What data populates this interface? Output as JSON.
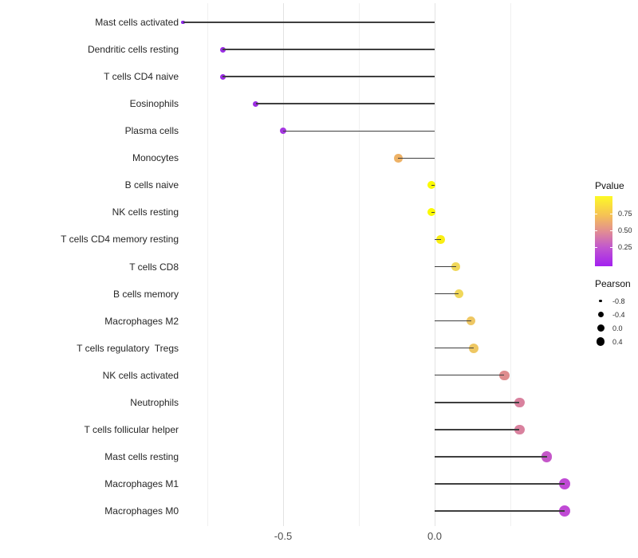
{
  "chart_data": {
    "type": "scatter",
    "subtype": "lollipop",
    "orientation": "horizontal",
    "title": "",
    "xlabel": "",
    "ylabel": "",
    "xlim": [
      -0.83,
      0.51
    ],
    "grid": true,
    "x_gridlines": [
      -0.75,
      -0.5,
      -0.25,
      0.0,
      0.25
    ],
    "x_ticks": [
      -0.5,
      0.0
    ],
    "x_tick_labels": [
      "-0.5",
      "0.0"
    ],
    "points": [
      {
        "label": "Mast cells activated",
        "pearson": -0.83,
        "color": "#8b27e5",
        "diameter": 4.5
      },
      {
        "label": "Dendritic cells resting",
        "pearson": -0.7,
        "color": "#9a2ce4",
        "diameter": 7
      },
      {
        "label": "T cells CD4 naive",
        "pearson": -0.7,
        "color": "#9a2ce4",
        "diameter": 7
      },
      {
        "label": "Eosinophils",
        "pearson": -0.59,
        "color": "#9c2ee3",
        "diameter": 7
      },
      {
        "label": "Plasma cells",
        "pearson": -0.5,
        "color": "#a537e1",
        "diameter": 8
      },
      {
        "label": "Monocytes",
        "pearson": -0.12,
        "color": "#eeb266",
        "diameter": 10.5
      },
      {
        "label": "B cells naive",
        "pearson": -0.01,
        "color": "#fbfa01",
        "diameter": 10
      },
      {
        "label": "NK cells resting",
        "pearson": -0.01,
        "color": "#fbfa01",
        "diameter": 10
      },
      {
        "label": "T cells CD4 memory resting",
        "pearson": 0.02,
        "color": "#f9ee14",
        "diameter": 10.5
      },
      {
        "label": "T cells CD8",
        "pearson": 0.07,
        "color": "#f0d75a",
        "diameter": 10.5
      },
      {
        "label": "B cells memory",
        "pearson": 0.08,
        "color": "#f0d75a",
        "diameter": 11
      },
      {
        "label": "Macrophages M2",
        "pearson": 0.12,
        "color": "#eec763",
        "diameter": 11.5
      },
      {
        "label": "T cells regulatory  Tregs",
        "pearson": 0.13,
        "color": "#eec763",
        "diameter": 12
      },
      {
        "label": "NK cells activated",
        "pearson": 0.23,
        "color": "#df8d8e",
        "diameter": 12.5
      },
      {
        "label": "Neutrophils",
        "pearson": 0.28,
        "color": "#d9819e",
        "diameter": 12.5
      },
      {
        "label": "T cells follicular helper",
        "pearson": 0.28,
        "color": "#d9819e",
        "diameter": 12.5
      },
      {
        "label": "Mast cells resting",
        "pearson": 0.37,
        "color": "#c557c9",
        "diameter": 13.5
      },
      {
        "label": "Macrophages M1",
        "pearson": 0.43,
        "color": "#c04ad5",
        "diameter": 14
      },
      {
        "label": "Macrophages M0",
        "pearson": 0.43,
        "color": "#c04ad5",
        "diameter": 14
      }
    ],
    "legends": {
      "pvalue": {
        "title": "Pvalue",
        "tick_labels": [
          "0.75",
          "0.50",
          "0.25"
        ],
        "tick_fractions_from_top": [
          0.25,
          0.485,
          0.725
        ],
        "gradient_bottom_to_top": [
          "#a320f0",
          "#c157ce",
          "#e28e92",
          "#f6c254",
          "#fdfa25"
        ],
        "gradient_stops_pct": [
          0,
          27,
          50,
          73,
          100
        ]
      },
      "pearson": {
        "title": "Pearson",
        "entries": [
          {
            "label": "-0.8",
            "diameter": 3.5
          },
          {
            "label": "-0.4",
            "diameter": 7
          },
          {
            "label": "0.0",
            "diameter": 9
          },
          {
            "label": "0.4",
            "diameter": 10.5
          }
        ],
        "dot_color": "#000000"
      }
    },
    "stem_color": "#3f3f3f",
    "grid_major_color": "#e3e3e3",
    "grid_minor_color": "#f0f0f0"
  }
}
